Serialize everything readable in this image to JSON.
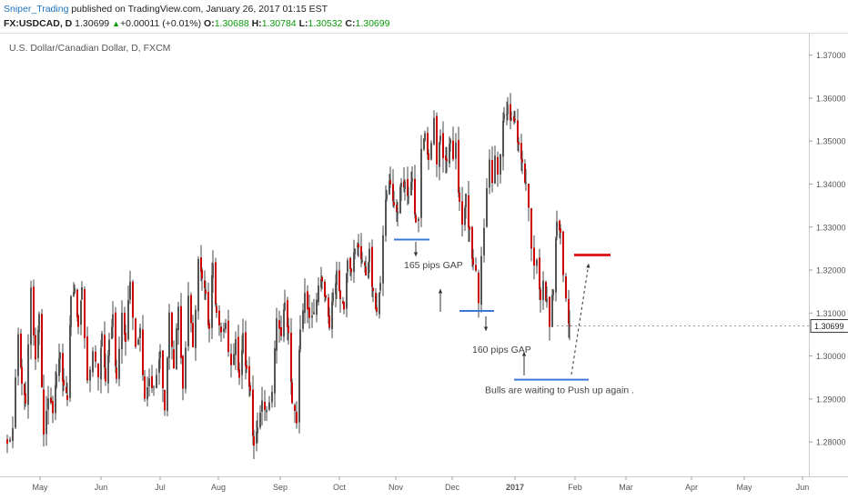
{
  "header": {
    "author": "Sniper_Trading",
    "published": " published on TradingView.com, January 26, 2017 01:15 EST",
    "symbol": "FX:USDCAD, D",
    "last": "1.30699",
    "up_arrow": "▲",
    "change": "+0.00011 (+0.01%)",
    "o_label": "O:",
    "o_value": "1.30688",
    "h_label": "H:",
    "h_value": "1.30784",
    "l_label": "L:",
    "l_value": "1.30532",
    "c_label": "C:",
    "c_value": "1.30699"
  },
  "chart_data": {
    "type": "candlestick",
    "title": "U.S. Dollar/Canadian Dollar, D, FXCM",
    "x_tick_labels": [
      "May",
      "Jun",
      "Jul",
      "Aug",
      "Sep",
      "Oct",
      "Nov",
      "Dec",
      "2017",
      "Feb",
      "Mar",
      "Apr",
      "May",
      "Jun"
    ],
    "y_tick_labels": [
      "1.37000",
      "1.36000",
      "1.35000",
      "1.34000",
      "1.33000",
      "1.32000",
      "1.31000",
      "1.30000",
      "1.29000",
      "1.28000"
    ],
    "ylim": [
      1.272,
      1.375
    ],
    "last_price_label": "1.30699",
    "colors": {
      "up": "#555555",
      "down": "#cc0000",
      "annotation": "#3c78d8",
      "target": "#e02020"
    },
    "close_path": [
      [
        0,
        1.2792
      ],
      [
        6,
        1.2829
      ],
      [
        12,
        1.3046
      ],
      [
        16,
        1.2944
      ],
      [
        20,
        1.2885
      ],
      [
        26,
        1.3153
      ],
      [
        31,
        1.2985
      ],
      [
        35,
        1.3096
      ],
      [
        40,
        1.2825
      ],
      [
        45,
        1.2892
      ],
      [
        50,
        1.2877
      ],
      [
        54,
        1.2952
      ],
      [
        58,
        1.3013
      ],
      [
        62,
        1.2921
      ],
      [
        66,
        1.29
      ],
      [
        70,
        1.3131
      ],
      [
        74,
        1.3166
      ],
      [
        78,
        1.3071
      ],
      [
        82,
        1.3148
      ],
      [
        88,
        1.2937
      ],
      [
        94,
        1.3013
      ],
      [
        100,
        1.2943
      ],
      [
        104,
        1.3051
      ],
      [
        108,
        1.2936
      ],
      [
        112,
        1.3036
      ],
      [
        116,
        1.3092
      ],
      [
        120,
        1.2942
      ],
      [
        126,
        1.3104
      ],
      [
        130,
        1.3035
      ],
      [
        135,
        1.3175
      ],
      [
        141,
        1.3028
      ],
      [
        146,
        1.3061
      ],
      [
        151,
        1.2906
      ],
      [
        156,
        1.295
      ],
      [
        161,
        1.2921
      ],
      [
        168,
        1.3003
      ],
      [
        173,
        1.2869
      ],
      [
        178,
        1.31
      ],
      [
        183,
        1.2971
      ],
      [
        188,
        1.312
      ],
      [
        193,
        1.2913
      ],
      [
        199,
        1.314
      ],
      [
        204,
        1.3018
      ],
      [
        210,
        1.3222
      ],
      [
        214,
        1.3183
      ],
      [
        218,
        1.314
      ],
      [
        222,
        1.3056
      ],
      [
        226,
        1.3215
      ],
      [
        230,
        1.3099
      ],
      [
        235,
        1.3046
      ],
      [
        240,
        1.3072
      ],
      [
        246,
        1.2968
      ],
      [
        251,
        1.3046
      ],
      [
        255,
        1.2942
      ],
      [
        259,
        1.3044
      ],
      [
        263,
        1.2963
      ],
      [
        267,
        1.2921
      ],
      [
        271,
        1.2796
      ],
      [
        275,
        1.2826
      ],
      [
        280,
        1.2884
      ],
      [
        285,
        1.2865
      ],
      [
        291,
        1.2929
      ],
      [
        296,
        1.3087
      ],
      [
        301,
        1.3042
      ],
      [
        305,
        1.3125
      ],
      [
        309,
        1.3043
      ],
      [
        313,
        1.29
      ],
      [
        318,
        1.2851
      ],
      [
        322,
        1.3063
      ],
      [
        327,
        1.3142
      ],
      [
        332,
        1.3092
      ],
      [
        337,
        1.3106
      ],
      [
        342,
        1.3163
      ],
      [
        346,
        1.3169
      ],
      [
        350,
        1.3128
      ],
      [
        354,
        1.307
      ],
      [
        358,
        1.3147
      ],
      [
        362,
        1.3189
      ],
      [
        366,
        1.3145
      ],
      [
        370,
        1.3111
      ],
      [
        374,
        1.3232
      ],
      [
        378,
        1.3205
      ],
      [
        382,
        1.3244
      ],
      [
        386,
        1.3256
      ],
      [
        390,
        1.3224
      ],
      [
        394,
        1.3192
      ],
      [
        398,
        1.324
      ],
      [
        402,
        1.3139
      ],
      [
        406,
        1.3109
      ],
      [
        410,
        1.3158
      ],
      [
        413,
        1.3287
      ],
      [
        417,
        1.3382
      ],
      [
        421,
        1.3405
      ],
      [
        425,
        1.3345
      ],
      [
        429,
        1.3331
      ],
      [
        433,
        1.3409
      ],
      [
        437,
        1.3399
      ],
      [
        441,
        1.338
      ],
      [
        445,
        1.3414
      ],
      [
        449,
        1.3306
      ],
      [
        452,
        1.3316
      ],
      [
        455,
        1.348
      ],
      [
        459,
        1.352
      ],
      [
        463,
        1.3454
      ],
      [
        466,
        1.35
      ],
      [
        469,
        1.3543
      ],
      [
        472,
        1.3435
      ],
      [
        476,
        1.3515
      ],
      [
        479,
        1.3451
      ],
      [
        483,
        1.3465
      ],
      [
        487,
        1.3506
      ],
      [
        490,
        1.3447
      ],
      [
        493,
        1.3485
      ],
      [
        497,
        1.3361
      ],
      [
        500,
        1.3309
      ],
      [
        504,
        1.3367
      ],
      [
        508,
        1.3283
      ],
      [
        512,
        1.32
      ],
      [
        515,
        1.3192
      ],
      [
        518,
        1.3124
      ],
      [
        521,
        1.3228
      ],
      [
        524,
        1.3288
      ],
      [
        527,
        1.3395
      ],
      [
        530,
        1.345
      ],
      [
        533,
        1.34
      ],
      [
        536,
        1.3463
      ],
      [
        539,
        1.3421
      ],
      [
        542,
        1.348
      ],
      [
        546,
        1.3556
      ],
      [
        550,
        1.358
      ],
      [
        554,
        1.3545
      ],
      [
        558,
        1.3538
      ],
      [
        562,
        1.3482
      ],
      [
        566,
        1.346
      ],
      [
        570,
        1.3394
      ],
      [
        573,
        1.3338
      ],
      [
        576,
        1.3256
      ],
      [
        579,
        1.3215
      ],
      [
        582,
        1.3215
      ],
      [
        586,
        1.3126
      ],
      [
        589,
        1.317
      ],
      [
        593,
        1.3125
      ],
      [
        596,
        1.306
      ],
      [
        600,
        1.316
      ],
      [
        604,
        1.3323
      ],
      [
        608,
        1.3291
      ],
      [
        611,
        1.3189
      ],
      [
        614,
        1.3134
      ],
      [
        618,
        1.307
      ]
    ],
    "annotations": [
      {
        "text": "165 pips GAP",
        "price": 1.3213
      },
      {
        "text": "160 pips GAP",
        "price": 1.3016
      },
      {
        "text": "Bulls are waiting to Push up again .",
        "price": 1.2922
      }
    ],
    "gap_lines": [
      {
        "price": 1.3271
      },
      {
        "price": 1.3105
      },
      {
        "price": 1.2945
      }
    ],
    "target_line": {
      "price": 1.3235
    }
  }
}
